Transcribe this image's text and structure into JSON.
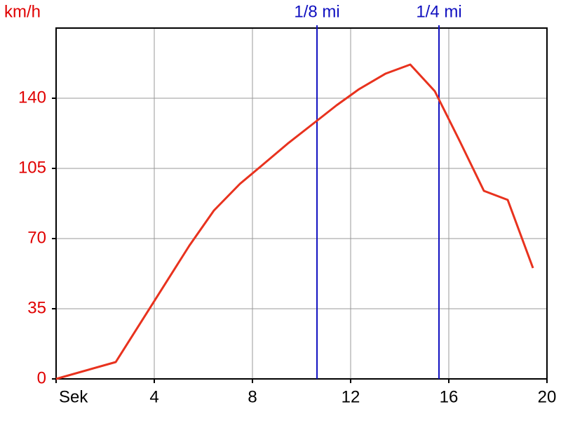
{
  "chart_data": {
    "type": "line",
    "y_label": "km/h",
    "x": [
      0,
      2.43,
      5.43,
      6.43,
      7.49,
      8.34,
      9.43,
      10.63,
      11.43,
      12.34,
      13.43,
      14.43,
      15.43,
      16.43,
      17.43,
      18.4,
      19.43
    ],
    "values": [
      0,
      8.4,
      66.5,
      84,
      97.3,
      106,
      117.3,
      128.8,
      136.5,
      144.5,
      152.3,
      156.8,
      143.5,
      119,
      93.8,
      89.3,
      55.3
    ],
    "color": "#e8321e",
    "xlim": [
      0,
      20
    ],
    "xticks": [
      {
        "value": 0,
        "label": "Sek"
      },
      4,
      8,
      12,
      16,
      20
    ],
    "ylim": [
      0,
      175
    ],
    "yticks": [
      0,
      35,
      70,
      105,
      140
    ],
    "grid": true,
    "markers": [
      {
        "label": "1/8 mi",
        "x": 10.63
      },
      {
        "label": "1/4 mi",
        "x": 15.6
      }
    ],
    "marker_color": "#1010c0",
    "tick_label_color": "#e00000"
  }
}
